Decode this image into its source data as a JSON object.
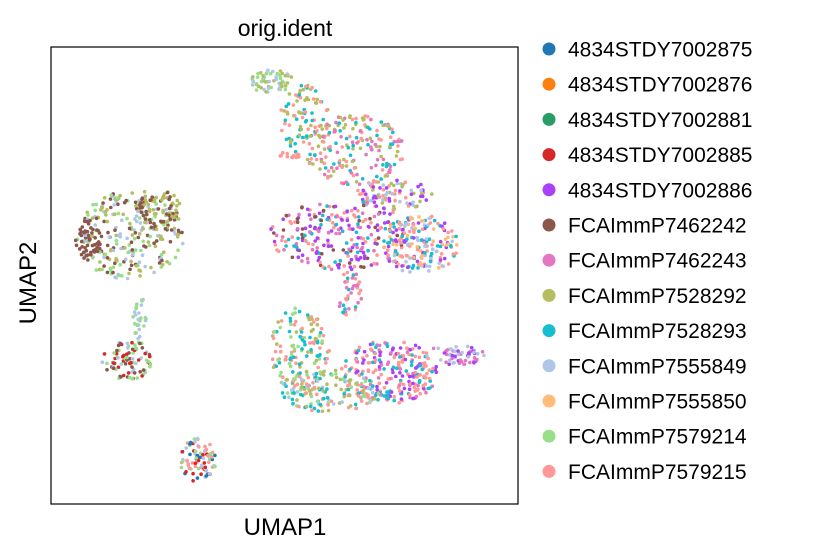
{
  "chart_data": {
    "type": "scatter",
    "title": "orig.ident",
    "xlabel": "UMAP1",
    "ylabel": "UMAP2",
    "grid": false,
    "ticks": false,
    "legend_position": "right",
    "categories": [
      {
        "name": "4834STDY7002875",
        "color": "#1f77b4"
      },
      {
        "name": "4834STDY7002876",
        "color": "#ff7f0e"
      },
      {
        "name": "4834STDY7002881",
        "color": "#279e68"
      },
      {
        "name": "4834STDY7002885",
        "color": "#d62728"
      },
      {
        "name": "4834STDY7002886",
        "color": "#aa40fc"
      },
      {
        "name": "FCAImmP7462242",
        "color": "#8c564b"
      },
      {
        "name": "FCAImmP7462243",
        "color": "#e377c2"
      },
      {
        "name": "FCAImmP7528292",
        "color": "#b5bd61"
      },
      {
        "name": "FCAImmP7528293",
        "color": "#17becf"
      },
      {
        "name": "FCAImmP7555849",
        "color": "#aec7e8"
      },
      {
        "name": "FCAImmP7555850",
        "color": "#ffbb78"
      },
      {
        "name": "FCAImmP7579214",
        "color": "#98df8a"
      },
      {
        "name": "FCAImmP7579215",
        "color": "#ff9896"
      }
    ]
  }
}
